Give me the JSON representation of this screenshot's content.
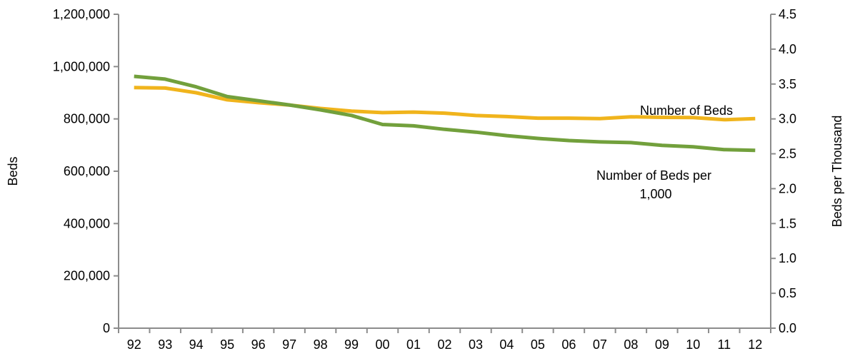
{
  "chart_data": {
    "type": "line",
    "categories": [
      "92",
      "93",
      "94",
      "95",
      "96",
      "97",
      "98",
      "99",
      "00",
      "01",
      "02",
      "03",
      "04",
      "05",
      "06",
      "07",
      "08",
      "09",
      "10",
      "11",
      "12"
    ],
    "left_axis": {
      "label": "Beds",
      "range": [
        0,
        1200000
      ],
      "tick_labels": [
        "0",
        "200,000",
        "400,000",
        "600,000",
        "800,000",
        "1,000,000",
        "1,200,000"
      ],
      "tick_values": [
        0,
        200000,
        400000,
        600000,
        800000,
        1000000,
        1200000
      ]
    },
    "right_axis": {
      "label": "Beds per Thousand",
      "range": [
        0,
        4.5
      ],
      "tick_labels": [
        "0.0",
        "0.5",
        "1.0",
        "1.5",
        "2.0",
        "2.5",
        "3.0",
        "3.5",
        "4.0",
        "4.5"
      ],
      "tick_values": [
        0,
        0.5,
        1.0,
        1.5,
        2.0,
        2.5,
        3.0,
        3.5,
        4.0,
        4.5
      ]
    },
    "grid": false,
    "series": [
      {
        "name": "Number of Beds",
        "axis": "left",
        "color": "#F0B41C",
        "values": [
          920000,
          918000,
          900000,
          873000,
          862000,
          853000,
          840000,
          830000,
          824000,
          826000,
          822000,
          813000,
          809000,
          803000,
          803000,
          801000,
          808000,
          806000,
          805000,
          797000,
          801000
        ]
      },
      {
        "name": "Number of Beds per 1,000",
        "axis": "right",
        "color": "#72A03C",
        "values": [
          3.61,
          3.57,
          3.46,
          3.32,
          3.26,
          3.2,
          3.13,
          3.05,
          2.92,
          2.9,
          2.85,
          2.81,
          2.76,
          2.72,
          2.69,
          2.67,
          2.66,
          2.62,
          2.6,
          2.56,
          2.55
        ]
      }
    ],
    "annotations": [
      {
        "series": "Number of Beds",
        "lines": [
          "Number of Beds"
        ]
      },
      {
        "series": "Number of Beds per 1,000",
        "lines": [
          "Number of Beds per",
          "1,000"
        ]
      }
    ]
  }
}
